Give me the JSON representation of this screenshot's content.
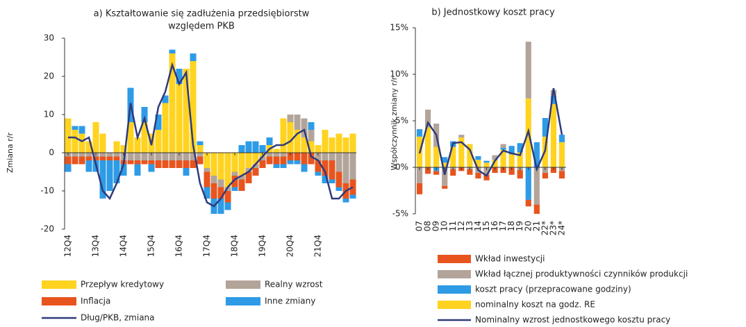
{
  "chart_data": [
    {
      "type": "bar",
      "title": [
        "a) Kształtowanie się zadłużenia przedsiębiorstw",
        "względem PKB"
      ],
      "y_label": "Zmiana r/r",
      "categories": [
        "12Q4",
        null,
        null,
        null,
        "13Q4",
        null,
        null,
        null,
        "14Q4",
        null,
        null,
        null,
        "15Q4",
        null,
        null,
        null,
        "16Q4",
        null,
        null,
        null,
        "17Q4",
        null,
        null,
        null,
        "18Q4",
        null,
        null,
        null,
        "19Q4",
        null,
        null,
        null,
        "20Q4",
        null,
        null,
        null,
        "21Q4",
        null,
        null,
        null,
        null,
        null
      ],
      "ylim": [
        -20,
        30
      ],
      "yticks": [
        -20,
        -10,
        0,
        10,
        20,
        30
      ],
      "series": [
        {
          "name": "Przepływ kredytowy",
          "color": "#ffd320",
          "values": [
            9,
            6,
            5,
            3,
            8,
            5,
            0,
            3,
            2,
            8,
            4,
            8,
            5,
            6,
            13,
            26,
            18,
            22,
            24,
            2,
            -4,
            -6,
            -7,
            -9,
            -5,
            -6,
            -4,
            -3,
            -1,
            2,
            1,
            9,
            8,
            6,
            4,
            3,
            2,
            6,
            4,
            5,
            4,
            5
          ]
        },
        {
          "name": "Realny wzrost",
          "color": "#b3a49a",
          "values": [
            -1,
            -1,
            -1,
            -1,
            -1,
            -1,
            -1,
            -1,
            -2,
            -2,
            -2,
            -2,
            -2,
            -2,
            -2,
            -2,
            -2,
            -2,
            -2,
            -1,
            -1,
            -2,
            -2,
            -1,
            -1,
            -1,
            -1,
            -1,
            -1,
            -1,
            -1,
            -1,
            2,
            4,
            5,
            3,
            -2,
            -2,
            -2,
            -5,
            -8,
            -7
          ]
        },
        {
          "name": "Inflacja",
          "color": "#e8541e",
          "values": [
            -2,
            -2,
            -2,
            -1,
            -1,
            -1,
            -1,
            -1,
            -1,
            -1,
            -1,
            -1,
            -1,
            -2,
            -2,
            -2,
            -2,
            -2,
            -2,
            -2,
            -4,
            -4,
            -3,
            -3,
            -3,
            -3,
            -3,
            -2,
            -2,
            -2,
            -2,
            -2,
            -2,
            -2,
            -3,
            -3,
            -3,
            -4,
            -5,
            -4,
            -4,
            -4
          ]
        },
        {
          "name": "Inne zmiany",
          "color": "#2e9be6",
          "values": [
            -2,
            1,
            2,
            -3,
            -3,
            -10,
            -8,
            -6,
            -3,
            9,
            -3,
            4,
            -2,
            4,
            2,
            1,
            4,
            -2,
            2,
            1,
            -3,
            -4,
            -4,
            -2,
            -1,
            2,
            3,
            3,
            2,
            2,
            -1,
            -1,
            -1,
            -1,
            -2,
            2,
            -1,
            -2,
            -1,
            -1,
            -1,
            -1
          ]
        },
        {
          "name": "Dług/PKB, zmiana",
          "color": "#2f3a7a",
          "kind": "line",
          "values": [
            4,
            4,
            3,
            4,
            -3,
            -10,
            -12,
            -8,
            -3,
            13,
            4,
            9,
            2,
            12,
            16,
            23,
            18,
            21,
            2,
            -8,
            -13,
            -14,
            -12,
            -9,
            -7,
            -6,
            -5,
            -3,
            -1,
            1,
            2,
            2,
            3,
            5,
            6,
            -1,
            -2,
            -5,
            -12,
            -12,
            -10,
            -9
          ]
        }
      ]
    },
    {
      "type": "bar",
      "title": [
        "b) Jednostkowy koszt pracy"
      ],
      "y_label": "Współczynnik zmiany r/r",
      "categories": [
        "07",
        "08",
        "09",
        "10",
        "11",
        "12",
        "13",
        "14",
        "15",
        "16",
        "17",
        "18",
        "19",
        "20",
        "21",
        "22*",
        "23*",
        "24*"
      ],
      "ylim": [
        -5,
        15
      ],
      "yticks": [
        {
          "value": -5,
          "label": "-5%"
        },
        {
          "value": 0,
          "label": "0%"
        },
        {
          "value": 5,
          "label": "5%"
        },
        {
          "value": 10,
          "label": "10%"
        },
        {
          "value": 15,
          "label": "15%"
        }
      ],
      "series": [
        {
          "name": "Wkład inwestycji",
          "color": "#e8541e",
          "values": [
            -1.2,
            -0.7,
            -0.4,
            -0.3,
            -0.7,
            -0.4,
            -0.6,
            -0.6,
            -0.6,
            -0.6,
            -0.6,
            -0.8,
            -0.9,
            -0.7,
            -1.0,
            -0.6,
            -0.6,
            -0.8
          ]
        },
        {
          "name": "Wkład łącznej produktywności czynników produkcji",
          "color": "#b3a49a",
          "values": [
            -1.7,
            1.9,
            2.5,
            -2.0,
            -0.2,
            0.3,
            -0.2,
            -0.6,
            -0.8,
            0.5,
            0.4,
            0,
            -0.3,
            6.1,
            -4.0,
            -0.6,
            0.6,
            -0.4
          ]
        },
        {
          "name": "koszt pracy (przepracowane godziny)",
          "color": "#2e9be6",
          "values": [
            0.8,
            0,
            -0.4,
            0.6,
            0.6,
            0,
            0,
            0.4,
            0.2,
            0,
            0.2,
            0.9,
            1.0,
            -3.5,
            2.7,
            2.0,
            0.9,
            0.8
          ]
        },
        {
          "name": "nominalny koszt na godz. RE",
          "color": "#ffd320",
          "values": [
            3.3,
            4.3,
            2.2,
            0.5,
            2.2,
            3.2,
            2.5,
            0.8,
            0.5,
            0.8,
            1.9,
            1.4,
            1.6,
            7.4,
            0,
            3.3,
            6.8,
            2.7
          ]
        },
        {
          "name": "Nominalny wzrost jednostkowego kosztu pracy",
          "color": "#2f3a7a",
          "kind": "line",
          "values": [
            1.5,
            4.8,
            3.5,
            -0.8,
            2.6,
            2.7,
            1.9,
            -0.3,
            -0.9,
            0.7,
            1.8,
            1.5,
            1.3,
            3.9,
            -0.2,
            1.8,
            8.5,
            3.5
          ]
        }
      ]
    }
  ]
}
